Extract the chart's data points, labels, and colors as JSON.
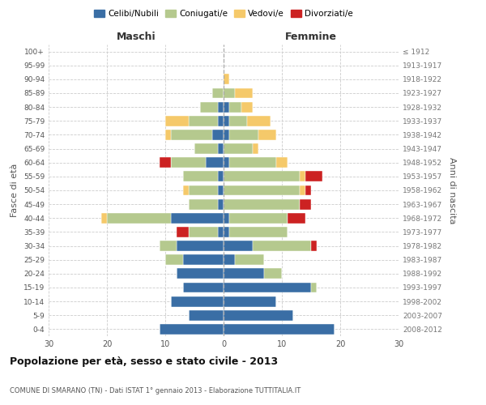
{
  "age_groups": [
    "0-4",
    "5-9",
    "10-14",
    "15-19",
    "20-24",
    "25-29",
    "30-34",
    "35-39",
    "40-44",
    "45-49",
    "50-54",
    "55-59",
    "60-64",
    "65-69",
    "70-74",
    "75-79",
    "80-84",
    "85-89",
    "90-94",
    "95-99",
    "100+"
  ],
  "birth_years": [
    "2008-2012",
    "2003-2007",
    "1998-2002",
    "1993-1997",
    "1988-1992",
    "1983-1987",
    "1978-1982",
    "1973-1977",
    "1968-1972",
    "1963-1967",
    "1958-1962",
    "1953-1957",
    "1948-1952",
    "1943-1947",
    "1938-1942",
    "1933-1937",
    "1928-1932",
    "1923-1927",
    "1918-1922",
    "1913-1917",
    "≤ 1912"
  ],
  "colors": {
    "celibi": "#3a6ea5",
    "coniugati": "#b5c98e",
    "vedovi": "#f5c96a",
    "divorziati": "#cc2222"
  },
  "maschi": {
    "celibi": [
      11,
      6,
      9,
      7,
      8,
      7,
      8,
      1,
      9,
      1,
      1,
      1,
      3,
      1,
      2,
      1,
      1,
      0,
      0,
      0,
      0
    ],
    "coniugati": [
      0,
      0,
      0,
      0,
      0,
      3,
      3,
      5,
      11,
      5,
      5,
      6,
      6,
      4,
      7,
      5,
      3,
      2,
      0,
      0,
      0
    ],
    "vedovi": [
      0,
      0,
      0,
      0,
      0,
      0,
      0,
      0,
      1,
      0,
      1,
      0,
      0,
      0,
      1,
      4,
      0,
      0,
      0,
      0,
      0
    ],
    "divorziati": [
      0,
      0,
      0,
      0,
      0,
      0,
      0,
      2,
      0,
      0,
      0,
      0,
      2,
      0,
      0,
      0,
      0,
      0,
      0,
      0,
      0
    ]
  },
  "femmine": {
    "celibi": [
      19,
      12,
      9,
      15,
      7,
      2,
      5,
      1,
      1,
      0,
      0,
      0,
      1,
      0,
      1,
      1,
      1,
      0,
      0,
      0,
      0
    ],
    "coniugati": [
      0,
      0,
      0,
      1,
      3,
      5,
      10,
      10,
      10,
      13,
      13,
      13,
      8,
      5,
      5,
      3,
      2,
      2,
      0,
      0,
      0
    ],
    "vedovi": [
      0,
      0,
      0,
      0,
      0,
      0,
      0,
      0,
      0,
      0,
      1,
      1,
      2,
      1,
      3,
      4,
      2,
      3,
      1,
      0,
      0
    ],
    "divorziati": [
      0,
      0,
      0,
      0,
      0,
      0,
      1,
      0,
      3,
      2,
      1,
      3,
      0,
      0,
      0,
      0,
      0,
      0,
      0,
      0,
      0
    ]
  },
  "xlim": 30,
  "title": "Popolazione per età, sesso e stato civile - 2013",
  "subtitle": "COMUNE DI SMARANO (TN) - Dati ISTAT 1° gennaio 2013 - Elaborazione TUTTITALIA.IT",
  "ylabel_left": "Fasce di età",
  "ylabel_right": "Anni di nascita",
  "legend_labels": [
    "Celibi/Nubili",
    "Coniugati/e",
    "Vedovi/e",
    "Divorziati/e"
  ],
  "maschi_label": "Maschi",
  "femmine_label": "Femmine"
}
